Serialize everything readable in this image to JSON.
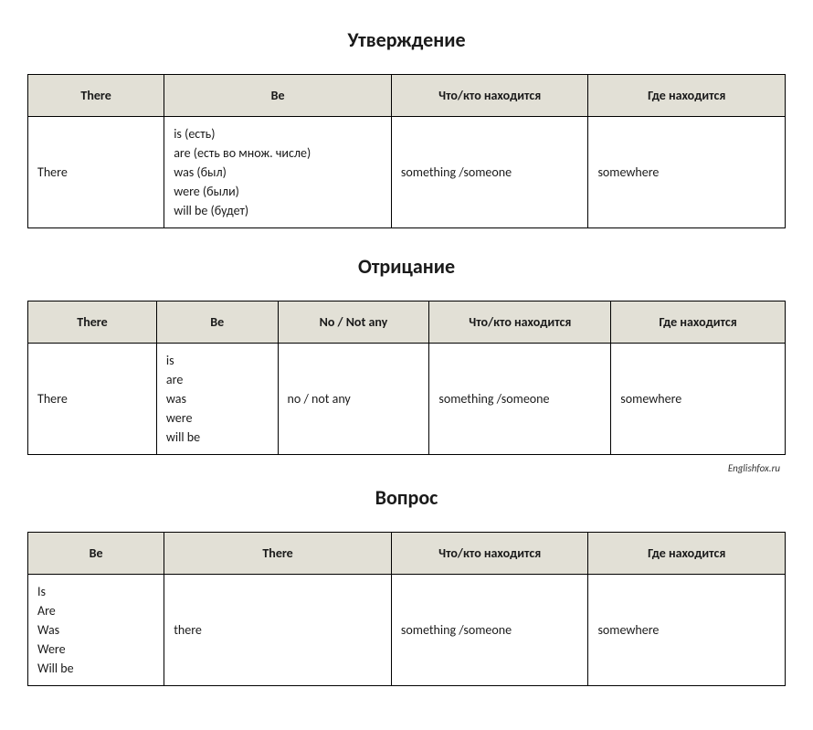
{
  "attribution": "Englishfox.ru",
  "sections": [
    {
      "title": "Утверждение",
      "headers": [
        "There",
        "Be",
        "Что/кто находится",
        "Где находится"
      ],
      "row": [
        "There",
        "is (есть)\nare (есть во множ. числе)\nwas (был)\nwere (были)\nwill be (будет)",
        "something /someone",
        "somewhere"
      ]
    },
    {
      "title": "Отрицание",
      "headers": [
        "There",
        "Be",
        "No / Not any",
        "Что/кто находится",
        "Где находится"
      ],
      "row": [
        "There",
        "is\nare\nwas\nwere\nwill be",
        "no / not any",
        "something /someone",
        "somewhere"
      ]
    },
    {
      "title": "Вопрос",
      "headers": [
        "Be",
        "There",
        "Что/кто находится",
        "Где находится"
      ],
      "row": [
        "Is\nAre\nWas\nWere\nWill be",
        "there",
        "something /someone",
        "somewhere"
      ]
    }
  ],
  "column_widths": {
    "4": [
      "18%",
      "30%",
      "26%",
      "26%"
    ],
    "5": [
      "17%",
      "16%",
      "20%",
      "24%",
      "23%"
    ]
  }
}
